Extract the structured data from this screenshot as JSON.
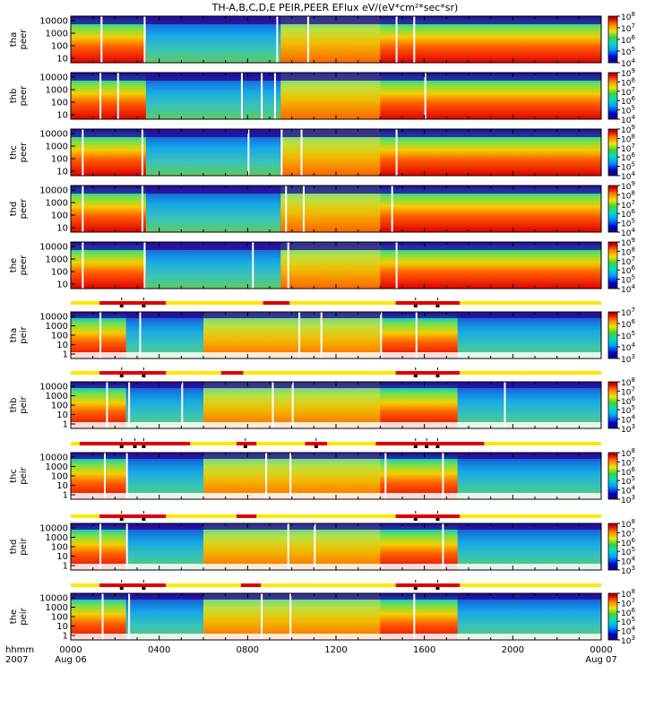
{
  "title": "TH-A,B,C,D,E PEIR,PEER EFlux eV/(eV*cm²*sec*sr)",
  "chart_data": {
    "type": "heatmap",
    "title": "TH-A,B,C,D,E PEIR,PEER EFlux eV/(eV*cm²*sec*sr)",
    "xlabel": "hhmm",
    "x_range_hours": [
      0,
      24
    ],
    "x_ticks": [
      "0000",
      "0400",
      "0800",
      "1200",
      "1600",
      "2000",
      "0000"
    ],
    "x_tick_hours": [
      0,
      4,
      8,
      12,
      16,
      20,
      24
    ],
    "date_labels": [
      "Aug 06",
      "Aug 07"
    ],
    "year_label": "2007",
    "x_axis_label_left": "hhmm",
    "y_ticks": [
      "10000",
      "1000",
      "100",
      "10",
      "1"
    ],
    "y_tick_values": [
      10000,
      1000,
      100,
      10,
      1
    ],
    "panels": [
      {
        "probe": "tha",
        "inst": "peer",
        "ylabel_1": "tha",
        "ylabel_2": "peer",
        "cb_min_exp": 4,
        "cb_max_exp": 8,
        "y_ticks": [
          "10000",
          "1000",
          "100",
          "10"
        ],
        "gaps_h": [
          1.35,
          3.3,
          9.3,
          10.7,
          14.7,
          15.5
        ]
      },
      {
        "probe": "thb",
        "inst": "peer",
        "ylabel_1": "thb",
        "ylabel_2": "peer",
        "cb_min_exp": 4,
        "cb_max_exp": 9,
        "y_ticks": [
          "10000",
          "1000",
          "100",
          "10"
        ],
        "gaps_h": [
          1.3,
          2.1,
          7.7,
          8.6,
          9.2,
          16.0
        ]
      },
      {
        "probe": "thc",
        "inst": "peer",
        "ylabel_1": "thc",
        "ylabel_2": "peer",
        "cb_min_exp": 4,
        "cb_max_exp": 9,
        "y_ticks": [
          "10000",
          "1000",
          "100",
          "10"
        ],
        "gaps_h": [
          0.5,
          3.2,
          8.0,
          9.5,
          10.4,
          14.7
        ]
      },
      {
        "probe": "thd",
        "inst": "peer",
        "ylabel_1": "thd",
        "ylabel_2": "peer",
        "cb_min_exp": 4,
        "cb_max_exp": 9,
        "y_ticks": [
          "10000",
          "1000",
          "100",
          "10"
        ],
        "gaps_h": [
          0.5,
          3.2,
          9.7,
          10.5,
          14.5
        ]
      },
      {
        "probe": "the",
        "inst": "peer",
        "ylabel_1": "the",
        "ylabel_2": "peer",
        "cb_min_exp": 4,
        "cb_max_exp": 9,
        "y_ticks": [
          "10000",
          "1000",
          "100",
          "10"
        ],
        "gaps_h": [
          0.5,
          3.3,
          8.2,
          9.8,
          14.7
        ]
      },
      {
        "probe": "tha",
        "inst": "peir",
        "ylabel_1": "tha",
        "ylabel_2": "peir",
        "cb_min_exp": 3,
        "cb_max_exp": 7,
        "y_ticks": [
          "10000",
          "1000",
          "100",
          "10",
          "1"
        ],
        "gaps_h": [
          1.3,
          3.1,
          10.3,
          11.3,
          14.0,
          15.6
        ]
      },
      {
        "probe": "thb",
        "inst": "peir",
        "ylabel_1": "thb",
        "ylabel_2": "peir",
        "cb_min_exp": 3,
        "cb_max_exp": 8,
        "y_ticks": [
          "10000",
          "1000",
          "100",
          "10",
          "1"
        ],
        "gaps_h": [
          1.6,
          2.6,
          5.0,
          9.1,
          10.0,
          19.6
        ]
      },
      {
        "probe": "thc",
        "inst": "peir",
        "ylabel_1": "thc",
        "ylabel_2": "peir",
        "cb_min_exp": 3,
        "cb_max_exp": 8,
        "y_ticks": [
          "10000",
          "1000",
          "100",
          "10",
          "1"
        ],
        "gaps_h": [
          1.5,
          2.5,
          8.8,
          9.9,
          14.2,
          16.8
        ]
      },
      {
        "probe": "thd",
        "inst": "peir",
        "ylabel_1": "thd",
        "ylabel_2": "peir",
        "cb_min_exp": 3,
        "cb_max_exp": 8,
        "y_ticks": [
          "10000",
          "1000",
          "100",
          "10",
          "1"
        ],
        "gaps_h": [
          1.3,
          2.5,
          9.8,
          11.0,
          16.8
        ]
      },
      {
        "probe": "the",
        "inst": "peir",
        "ylabel_1": "the",
        "ylabel_2": "peir",
        "cb_min_exp": 3,
        "cb_max_exp": 8,
        "y_ticks": [
          "10000",
          "1000",
          "100",
          "10",
          "1"
        ],
        "gaps_h": [
          1.4,
          2.6,
          8.6,
          9.9,
          15.5
        ]
      }
    ],
    "mode_bars": [
      {
        "before_panel": 5,
        "red": [
          [
            1.3,
            4.3
          ],
          [
            8.7,
            9.9
          ],
          [
            14.7,
            17.6
          ]
        ],
        "ticks": [
          2.3,
          3.3,
          15.6,
          16.6
        ]
      },
      {
        "before_panel": 6,
        "red": [
          [
            1.3,
            4.3
          ],
          [
            6.8,
            7.8
          ],
          [
            14.7,
            17.6
          ]
        ],
        "ticks": [
          2.3,
          3.3,
          15.6,
          16.6
        ]
      },
      {
        "before_panel": 7,
        "red": [
          [
            0.4,
            5.4
          ],
          [
            7.5,
            8.4
          ],
          [
            10.6,
            11.6
          ],
          [
            13.8,
            18.7
          ]
        ],
        "ticks": [
          2.3,
          2.9,
          3.3,
          7.9,
          11.1,
          15.6,
          16.1,
          16.6
        ]
      },
      {
        "before_panel": 8,
        "red": [
          [
            1.3,
            4.3
          ],
          [
            7.5,
            8.4
          ],
          [
            14.7,
            17.6
          ]
        ],
        "ticks": [
          2.3,
          3.3,
          15.6,
          16.6
        ]
      },
      {
        "before_panel": 9,
        "red": [
          [
            1.3,
            4.3
          ],
          [
            7.7,
            8.6
          ],
          [
            14.7,
            17.6
          ]
        ],
        "ticks": [
          2.3,
          3.3,
          15.6,
          16.6
        ]
      }
    ]
  }
}
